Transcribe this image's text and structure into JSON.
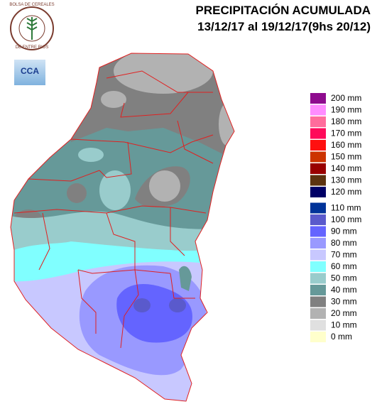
{
  "header": {
    "title": "PRECIPITACIÓN ACUMULADA",
    "subtitle": "13/12/17 al 19/12/17(9hs 20/12)"
  },
  "logo": {
    "top_text": "BOLSA DE CEREALES",
    "bottom_text": "DE ENTRE RIOS",
    "badge": "CCA"
  },
  "legend": [
    {
      "label": "200 mm",
      "color": "#8e0b8e"
    },
    {
      "label": "190 mm",
      "color": "#ff8cff"
    },
    {
      "label": "180 mm",
      "color": "#ff6c9c"
    },
    {
      "label": "170 mm",
      "color": "#ff0a5a"
    },
    {
      "label": "160 mm",
      "color": "#ff1010"
    },
    {
      "label": "150 mm",
      "color": "#cc3300"
    },
    {
      "label": "140 mm",
      "color": "#990000"
    },
    {
      "label": "130 mm",
      "color": "#5c3310"
    },
    {
      "label": "120 mm",
      "color": "#000066"
    },
    {
      "label": "110 mm",
      "color": "#003399"
    },
    {
      "label": "100 mm",
      "color": "#5a5acc"
    },
    {
      "label": "90 mm",
      "color": "#6464ff"
    },
    {
      "label": "80 mm",
      "color": "#9999ff"
    },
    {
      "label": "70 mm",
      "color": "#c8c8ff"
    },
    {
      "label": "60 mm",
      "color": "#80ffff"
    },
    {
      "label": "50 mm",
      "color": "#99cccc"
    },
    {
      "label": "40 mm",
      "color": "#669999"
    },
    {
      "label": "30 mm",
      "color": "#808080"
    },
    {
      "label": "20 mm",
      "color": "#b2b2b2"
    },
    {
      "label": "10 mm",
      "color": "#e0e0e0"
    },
    {
      "label": "0 mm",
      "color": "#ffffcc"
    }
  ]
}
